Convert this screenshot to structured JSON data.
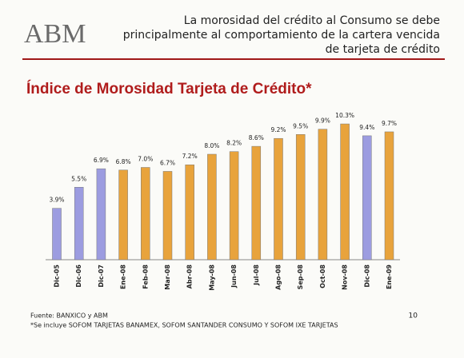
{
  "header": {
    "logo": "ABM",
    "lines": [
      "La morosidad del crédito al Consumo se debe",
      "principalmente al comportamiento de la  cartera vencida",
      "de tarjeta de crédito"
    ]
  },
  "chart_data": {
    "type": "bar",
    "title": "Índice de Morosidad Tarjeta de Crédito*",
    "categories": [
      "Dic-05",
      "Dic-06",
      "Dic-07",
      "Ene-08",
      "Feb-08",
      "Mar-08",
      "Abr-08",
      "May-08",
      "Jun-08",
      "Jul-08",
      "Ago-08",
      "Sep-08",
      "Oct-08",
      "Nov-08",
      "Dic-08",
      "Ene-09"
    ],
    "values": [
      3.9,
      5.5,
      6.9,
      6.8,
      7.0,
      6.7,
      7.2,
      8.0,
      8.2,
      8.6,
      9.2,
      9.5,
      9.9,
      10.3,
      9.4,
      9.7
    ],
    "value_labels": [
      "3.9%",
      "5.5%",
      "6.9%",
      "6.8%",
      "7.0%",
      "6.7%",
      "7.2%",
      "8.0%",
      "8.2%",
      "8.6%",
      "9.2%",
      "9.5%",
      "9.9%",
      "10.3%",
      "9.4%",
      "9.7%"
    ],
    "colors": [
      "#9c9ce0",
      "#9c9ce0",
      "#9c9ce0",
      "#e8a33c",
      "#e8a33c",
      "#e8a33c",
      "#e8a33c",
      "#e8a33c",
      "#e8a33c",
      "#e8a33c",
      "#e8a33c",
      "#e8a33c",
      "#e8a33c",
      "#e8a33c",
      "#9c9ce0",
      "#e8a33c"
    ]
  },
  "footer": {
    "source": "Fuente:  BANXICO y ABM",
    "note": "*Se incluye SOFOM TARJETAS BANAMEX, SOFOM SANTANDER CONSUMO Y SOFOM IXE TARJETAS",
    "page": "10"
  }
}
